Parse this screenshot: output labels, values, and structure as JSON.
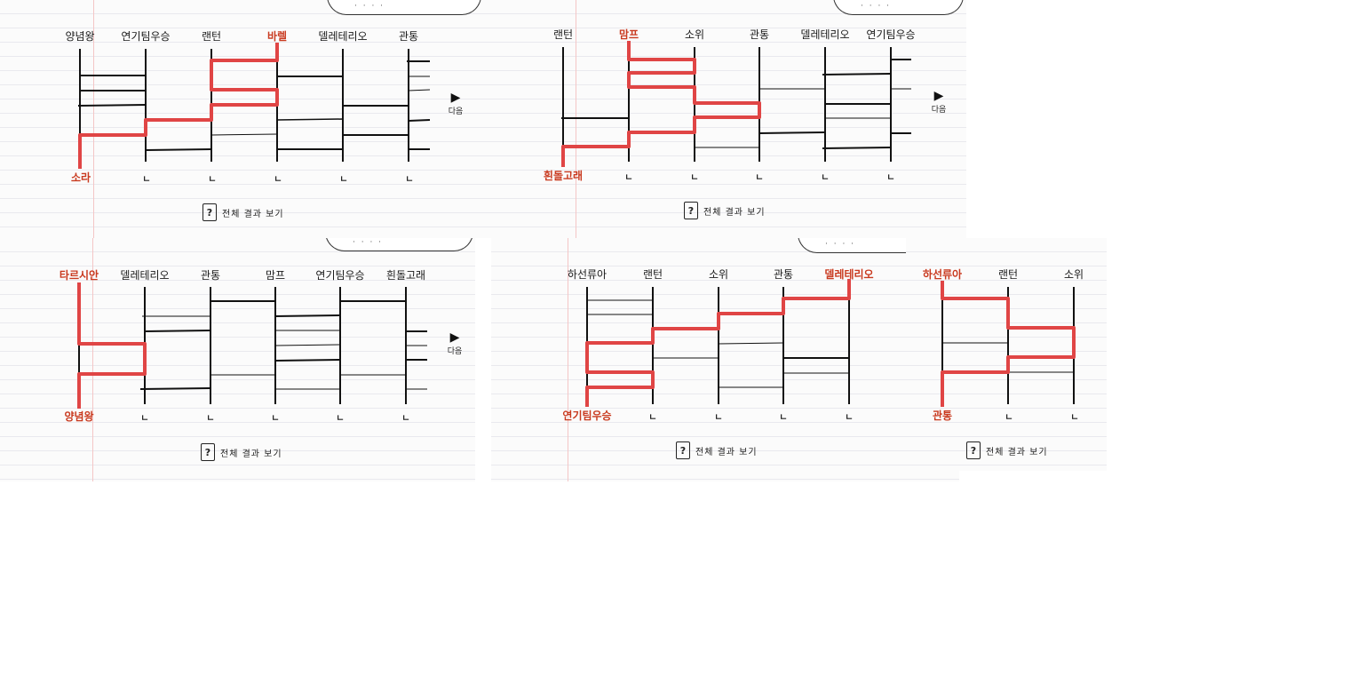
{
  "common": {
    "next_label": "다음",
    "next_icon": "▶",
    "result_label": "전체 결과 보기",
    "result_icon": "?",
    "bottom_mark": "ㄴ",
    "highlight_color": "#c93a1f",
    "path_color": "#e04545"
  },
  "panels": [
    {
      "names": [
        "양념왕",
        "연기팀우승",
        "랜턴",
        "바렐",
        "델레테리오",
        "관통"
      ],
      "start_index": 3,
      "result_name": "소라",
      "result_index": 0
    },
    {
      "names": [
        "랜턴",
        "맘프",
        "소위",
        "관통",
        "델레테리오",
        "연기팀우승"
      ],
      "start_index": 1,
      "result_name": "흰돌고래",
      "result_index": 0
    },
    {
      "names": [
        "타르시안",
        "델레테리오",
        "관통",
        "맘프",
        "연기팀우승",
        "흰돌고래"
      ],
      "start_index": 0,
      "result_name": "양념왕",
      "result_index": 0
    },
    {
      "names": [
        "하선류아",
        "랜턴",
        "소위",
        "관통",
        "델레테리오"
      ],
      "start_index": 4,
      "result_name": "연기팀우승",
      "result_index": 0
    },
    {
      "names": [
        "하선류아",
        "랜턴",
        "소위"
      ],
      "start_index": 0,
      "result_name": "관통",
      "result_index": 0
    }
  ]
}
